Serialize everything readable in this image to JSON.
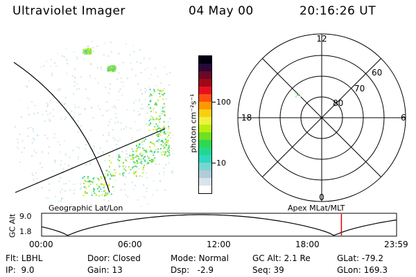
{
  "header": {
    "title": "Ultraviolet Imager",
    "date": "04 May 00",
    "time": "20:16:26 UT"
  },
  "image_panel": {
    "label": "Geographic Lat/Lon"
  },
  "colorbar": {
    "unit_label": "photon cm⁻²s⁻¹",
    "ticks": [
      {
        "label": "100",
        "value": 100
      },
      {
        "label": "10",
        "value": 10
      }
    ],
    "colors": [
      "#ffffff",
      "#d8e4ea",
      "#b0ccd8",
      "#78d6d0",
      "#30d8c0",
      "#22d890",
      "#30d850",
      "#70e020",
      "#b8ee10",
      "#f0f040",
      "#f8d010",
      "#ff9800",
      "#ff5010",
      "#e81020",
      "#a00818",
      "#6a0828",
      "#2a0838",
      "#000010"
    ]
  },
  "polar_plot": {
    "label": "Apex MLat/MLT",
    "mlt_labels": [
      "12",
      "18",
      "6",
      "0"
    ],
    "lat_labels": [
      "60",
      "70",
      "80"
    ]
  },
  "timeline": {
    "y_label": "GC Alt",
    "y_ticks": [
      "9.0",
      "1.8"
    ],
    "x_ticks": [
      "00:00",
      "06:00",
      "12:00",
      "18:00",
      "23:59"
    ],
    "current_time_marker_hours": 20.27
  },
  "status": {
    "col1": [
      {
        "key": "Flt:",
        "value": "LBHL"
      },
      {
        "key": "IP:",
        "value": "9.0"
      }
    ],
    "col2": [
      {
        "key": "Door:",
        "value": "Closed"
      },
      {
        "key": "Gain:",
        "value": "13"
      }
    ],
    "col3": [
      {
        "key": "Mode:",
        "value": "Normal"
      },
      {
        "key": "Dsp:",
        "value": "-2.9"
      }
    ],
    "col4": [
      {
        "key": "GC Alt:",
        "value": "2.1 Re"
      },
      {
        "key": "Seq:",
        "value": "39"
      }
    ],
    "col5": [
      {
        "key": "GLat:",
        "value": "-79.2"
      },
      {
        "key": "GLon:",
        "value": "169.3"
      }
    ]
  }
}
